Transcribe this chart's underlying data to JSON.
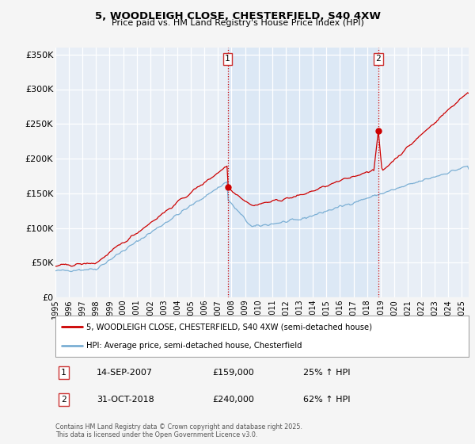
{
  "title": "5, WOODLEIGH CLOSE, CHESTERFIELD, S40 4XW",
  "subtitle": "Price paid vs. HM Land Registry's House Price Index (HPI)",
  "background_color": "#f5f5f5",
  "plot_bg_color": "#e8eef6",
  "grid_color": "#ffffff",
  "ylim": [
    0,
    360000
  ],
  "yticks": [
    0,
    50000,
    100000,
    150000,
    200000,
    250000,
    300000,
    350000
  ],
  "ytick_labels": [
    "£0",
    "£50K",
    "£100K",
    "£150K",
    "£200K",
    "£250K",
    "£300K",
    "£350K"
  ],
  "xlim_start": 1995.0,
  "xlim_end": 2025.5,
  "xticks": [
    1995,
    1996,
    1997,
    1998,
    1999,
    2000,
    2001,
    2002,
    2003,
    2004,
    2005,
    2006,
    2007,
    2008,
    2009,
    2010,
    2011,
    2012,
    2013,
    2014,
    2015,
    2016,
    2017,
    2018,
    2019,
    2020,
    2021,
    2022,
    2023,
    2024,
    2025
  ],
  "red_line_color": "#cc0000",
  "blue_line_color": "#7bafd4",
  "shade_color": "#dce8f5",
  "sale1_x": 2007.71,
  "sale1_y": 159000,
  "sale1_label": "1",
  "sale1_date": "14-SEP-2007",
  "sale1_price": "£159,000",
  "sale1_hpi": "25% ↑ HPI",
  "sale2_x": 2018.835,
  "sale2_y": 240000,
  "sale2_label": "2",
  "sale2_date": "31-OCT-2018",
  "sale2_price": "£240,000",
  "sale2_hpi": "62% ↑ HPI",
  "legend_label_red": "5, WOODLEIGH CLOSE, CHESTERFIELD, S40 4XW (semi-detached house)",
  "legend_label_blue": "HPI: Average price, semi-detached house, Chesterfield",
  "footnote": "Contains HM Land Registry data © Crown copyright and database right 2025.\nThis data is licensed under the Open Government Licence v3.0."
}
